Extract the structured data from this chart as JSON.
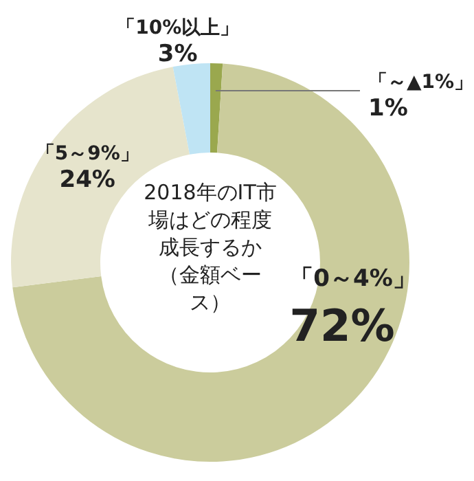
{
  "chart_data": {
    "type": "donut",
    "title": "2018年のIT市場はどの程度成長するか（金額ベース）",
    "categories": [
      "「～▲1%」",
      "「0～4%」",
      "「5～9%」",
      "「10%以上」"
    ],
    "values": [
      1,
      72,
      24,
      3
    ],
    "colors": [
      "#9aa84e",
      "#cbcc9c",
      "#e6e4cc",
      "#bfe4f4"
    ],
    "value_labels": [
      "1%",
      "72%",
      "24%",
      "3%"
    ]
  }
}
